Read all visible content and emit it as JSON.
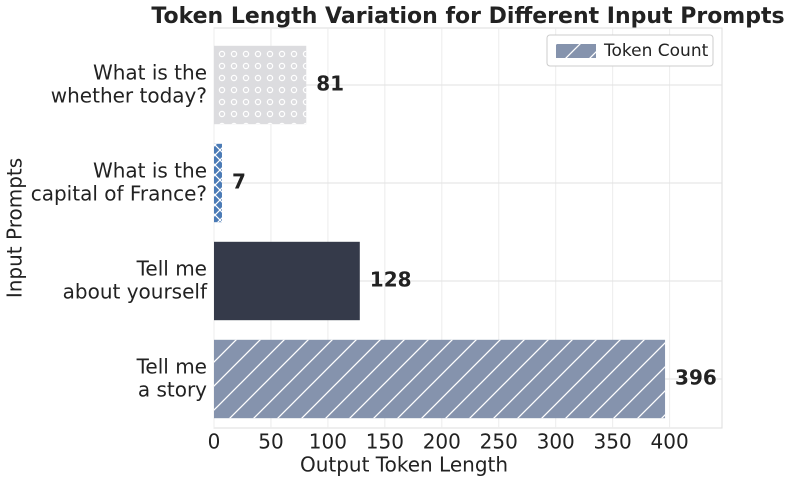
{
  "chart_data": {
    "type": "barh",
    "title": "Token Length Variation for Different Input Prompts",
    "xlabel": "Output Token Length",
    "ylabel": "Input Prompts",
    "categories": [
      "Tell me\na story",
      "Tell me\nabout yourself",
      "What is the\ncapital of France?",
      "What is the\nwhether today?"
    ],
    "series": [
      {
        "name": "Token Count",
        "values": [
          396,
          128,
          7,
          81
        ],
        "colors": [
          "#8593ad",
          "#353a4a",
          "#4a7ab5",
          "#dcdcdf"
        ],
        "hatches": [
          "/",
          "\\",
          "x",
          "o"
        ]
      }
    ],
    "xlim": [
      0,
      446
    ],
    "xticks": [
      0,
      50,
      100,
      150,
      200,
      250,
      300,
      350,
      400
    ],
    "grid": true,
    "legend": "upper right"
  }
}
